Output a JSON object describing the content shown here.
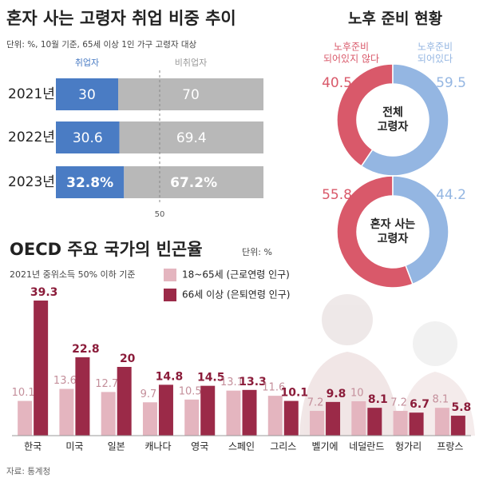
{
  "chart_data": [
    {
      "type": "stacked-bar-horizontal",
      "title": "혼자 사는 고령자 취업 비중 추이",
      "subtitle": "단위: %, 10월 기준, 65세 이상 1인 가구 고령자 대상",
      "categories": [
        "2021년",
        "2022년",
        "2023년"
      ],
      "series": [
        {
          "name": "취업자",
          "color": "#4a7cc4",
          "values": [
            30,
            30.6,
            32.8
          ],
          "value_labels": [
            "30",
            "30.6",
            "32.8%"
          ]
        },
        {
          "name": "비취업자",
          "color": "#b8b8b8",
          "values": [
            70,
            69.4,
            67.2
          ],
          "value_labels": [
            "70",
            "69.4",
            "67.2%"
          ]
        }
      ],
      "xlim": [
        0,
        100
      ],
      "xticks": [
        50
      ]
    },
    {
      "type": "donut",
      "title": "노후 준비 현황",
      "categories": [
        "노후준비 되어있지 않다",
        "노후준비 되어있다"
      ],
      "colors": [
        "#d9596a",
        "#94b6e2"
      ],
      "series": [
        {
          "name": "전체 고령자",
          "values": [
            40.5,
            59.5
          ]
        },
        {
          "name": "혼자 사는 고령자",
          "values": [
            55.8,
            44.2
          ]
        }
      ]
    },
    {
      "type": "bar",
      "title": "OECD 주요 국가의 빈곤율",
      "unit": "단위: %",
      "subtitle": "2021년 중위소득 50% 이하 기준",
      "categories": [
        "한국",
        "미국",
        "일본",
        "캐나다",
        "영국",
        "스페인",
        "그리스",
        "벨기에",
        "네덜란드",
        "헝가리",
        "프랑스"
      ],
      "series": [
        {
          "name": "18~65세 (근로연령 인구)",
          "color": "#e4b5bf",
          "values": [
            10.1,
            13.6,
            12.7,
            9.7,
            10.5,
            13.1,
            11.6,
            7.2,
            10,
            7.2,
            8.1
          ]
        },
        {
          "name": "66세 이상 (은퇴연령 인구)",
          "color": "#9b2a48",
          "values": [
            39.3,
            22.8,
            20,
            14.8,
            14.5,
            13.3,
            10.1,
            9.8,
            8.1,
            6.7,
            5.8
          ]
        }
      ]
    }
  ],
  "source": "자료: 통계청"
}
